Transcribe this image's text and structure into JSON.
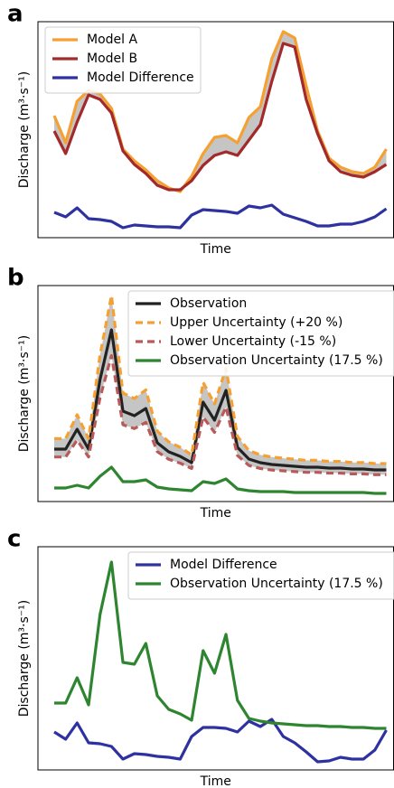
{
  "chart_data": [
    {
      "type": "line",
      "panel_label": "a",
      "xlabel": "Time",
      "ylabel": "Discharge (m³·s⁻¹)",
      "ylim": [
        0,
        239
      ],
      "legend": "upper left",
      "fill_between": [
        0,
        1
      ],
      "series": [
        {
          "name": "Model A",
          "color": "#f5a033",
          "style": "solid",
          "values": [
            135,
            105,
            151,
            163,
            159,
            143,
            98,
            85,
            75,
            63,
            55,
            51,
            68,
            93,
            111,
            113,
            105,
            133,
            145,
            198,
            228,
            221,
            168,
            118,
            88,
            78,
            73,
            71,
            78,
            98
          ]
        },
        {
          "name": "Model B",
          "color": "#a32a2a",
          "style": "solid",
          "values": [
            118,
            93,
            128,
            158,
            153,
            138,
            96,
            81,
            71,
            58,
            53,
            53,
            63,
            80,
            91,
            95,
            91,
            108,
            125,
            173,
            215,
            211,
            153,
            115,
            85,
            73,
            69,
            67,
            73,
            81
          ]
        },
        {
          "name": "Model Difference",
          "color": "#2e31a0",
          "style": "solid",
          "values": [
            28,
            23,
            33,
            21,
            20,
            18,
            11,
            14,
            13,
            12,
            12,
            11,
            25,
            31,
            30,
            29,
            27,
            35,
            33,
            36,
            26,
            22,
            18,
            13,
            13,
            15,
            15,
            18,
            23,
            32
          ]
        }
      ]
    },
    {
      "type": "line",
      "panel_label": "b",
      "xlabel": "Time",
      "ylabel": "Discharge (m³·s⁻¹)",
      "ylim": [
        0,
        239
      ],
      "legend": "upper right",
      "fill_between": [
        1,
        2
      ],
      "series": [
        {
          "name": "Observation",
          "color": "#222222",
          "style": "solid",
          "values": [
            58,
            58,
            80,
            58,
            135,
            190,
            100,
            95,
            103,
            65,
            55,
            50,
            43,
            110,
            90,
            123,
            60,
            47,
            43,
            41,
            40,
            39,
            38,
            38,
            37,
            37,
            36,
            36,
            35,
            35
          ]
        },
        {
          "name": "Upper Uncertainty (+20 %)",
          "color": "#f5a033",
          "style": "dashed",
          "values": [
            69.6,
            69.6,
            96,
            69.6,
            162,
            228,
            120,
            114,
            123.6,
            78,
            66,
            60,
            51.6,
            132,
            108,
            147.6,
            72,
            56.4,
            51.6,
            49.2,
            48,
            46.8,
            45.6,
            45.6,
            44.4,
            44.4,
            43.2,
            43.2,
            42,
            42
          ]
        },
        {
          "name": "Lower Uncertainty (-15 %)",
          "color": "#b85a5a",
          "style": "dashed",
          "values": [
            49.3,
            49.3,
            68,
            49.3,
            114.75,
            161.5,
            85,
            80.75,
            87.55,
            55.25,
            46.75,
            42.5,
            36.55,
            93.5,
            76.5,
            104.55,
            51,
            39.95,
            36.55,
            34.85,
            34,
            33.15,
            32.3,
            32.3,
            31.45,
            31.45,
            30.6,
            30.6,
            29.75,
            29.75
          ]
        },
        {
          "name": "Observation Uncertainty (17.5 %)",
          "color": "#2e8530",
          "style": "solid",
          "values": [
            15,
            15,
            18,
            15,
            28,
            38,
            22,
            22,
            24,
            16,
            14,
            13,
            12,
            22,
            20,
            25,
            14,
            12,
            11,
            11,
            11,
            10,
            10,
            10,
            10,
            10,
            10,
            10,
            9,
            9
          ]
        }
      ]
    },
    {
      "type": "line",
      "panel_label": "c",
      "xlabel": "Time",
      "ylabel": "Discharge (m³·s⁻¹)",
      "ylim": [
        0,
        247
      ],
      "legend": "upper right",
      "series": [
        {
          "name": "Model Difference",
          "color": "#2e31a0",
          "style": "solid",
          "values": [
            42,
            34,
            52,
            30,
            29,
            26,
            12,
            18,
            17,
            15,
            14,
            12,
            37,
            47,
            47,
            46,
            42,
            54,
            48,
            56,
            37,
            30,
            20,
            9,
            10,
            14,
            12,
            12,
            22,
            44
          ]
        },
        {
          "name": "Observation Uncertainty (17.5 %)",
          "color": "#2e8530",
          "style": "solid",
          "values": [
            74,
            74,
            102,
            72,
            172,
            230,
            119,
            117,
            140,
            82,
            67,
            62,
            55,
            132,
            107,
            150,
            77,
            57,
            54,
            52,
            51,
            50,
            49,
            49,
            48,
            48,
            47,
            47,
            46,
            46
          ]
        }
      ]
    }
  ]
}
